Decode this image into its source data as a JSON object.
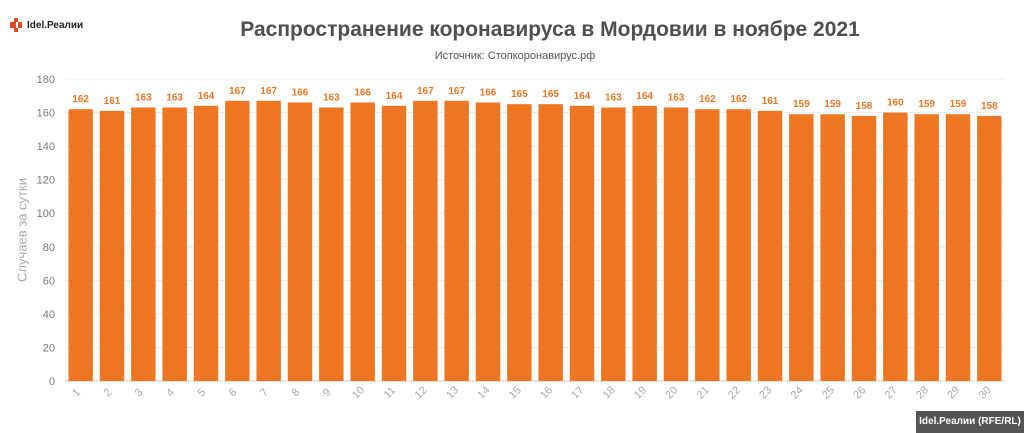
{
  "logo": {
    "text": "Idel.Реалии",
    "icon": "rferl-logo-icon",
    "color": "#e8491d"
  },
  "title": "Распространение коронавируса в Мордовии в ноябре 2021",
  "subtitle": "Источник: Стопкоронавирус.рф",
  "credit": "Idel.Реалии (RFE/RL)",
  "chart_data": {
    "type": "bar",
    "ylabel": "Случаев за сутки",
    "xlabel": "",
    "ylim": [
      0,
      180
    ],
    "yticks": [
      0,
      20,
      40,
      60,
      80,
      100,
      120,
      140,
      160,
      180
    ],
    "grid": true,
    "bar_color": "#ee7623",
    "label_color": "#ee7623",
    "categories": [
      "1",
      "2",
      "3",
      "4",
      "5",
      "6",
      "7",
      "8",
      "9",
      "10",
      "11",
      "12",
      "13",
      "14",
      "15",
      "16",
      "17",
      "18",
      "19",
      "20",
      "21",
      "22",
      "23",
      "24",
      "25",
      "26",
      "27",
      "28",
      "29",
      "30"
    ],
    "values": [
      162,
      161,
      163,
      163,
      164,
      167,
      167,
      166,
      163,
      166,
      164,
      167,
      167,
      166,
      165,
      165,
      164,
      163,
      164,
      163,
      162,
      162,
      161,
      159,
      159,
      158,
      160,
      159,
      159,
      158
    ]
  }
}
